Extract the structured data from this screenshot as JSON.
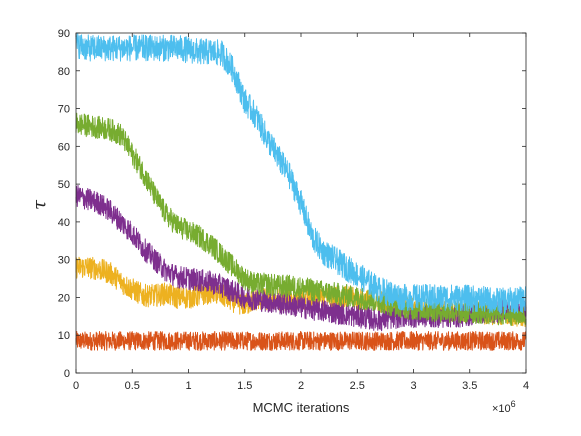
{
  "chart_data": {
    "type": "line",
    "title": "",
    "xlabel": "MCMC iterations",
    "ylabel": "τ",
    "x_exponent_label": "×10",
    "x_exponent_power": "6",
    "xlim": [
      0,
      4
    ],
    "ylim": [
      0,
      90
    ],
    "xticks": [
      0,
      0.5,
      1,
      1.5,
      2,
      2.5,
      3,
      3.5,
      4
    ],
    "xtick_labels": [
      "0",
      "0.5",
      "1",
      "1.5",
      "2",
      "2.5",
      "3",
      "3.5",
      "4"
    ],
    "yticks": [
      0,
      10,
      20,
      30,
      40,
      50,
      60,
      70,
      80,
      90
    ],
    "ytick_labels": [
      "0",
      "10",
      "20",
      "30",
      "40",
      "50",
      "60",
      "70",
      "80",
      "90"
    ],
    "grid": false,
    "series": [
      {
        "color": "#D95319",
        "band_width": 2.5,
        "x": [
          0,
          0.5,
          1,
          1.5,
          2,
          2.5,
          3,
          3.5,
          4
        ],
        "y": [
          8.5,
          8.5,
          8.5,
          8.5,
          8.5,
          8.5,
          8.5,
          8.5,
          8.5
        ]
      },
      {
        "color": "#EDB120",
        "band_width": 3,
        "x": [
          0,
          0.1,
          0.2,
          0.3,
          0.45,
          0.6,
          0.7,
          0.8,
          0.9,
          1.0,
          1.1,
          1.2,
          1.3,
          1.4,
          1.5,
          1.6,
          1.7,
          1.8,
          1.9,
          2.0,
          2.1,
          2.2,
          2.3,
          2.4,
          2.5,
          2.6,
          2.7,
          2.8,
          2.9,
          3.0,
          3.2,
          3.4,
          3.6,
          3.8,
          4.0
        ],
        "y": [
          28,
          28,
          27.5,
          26.5,
          23,
          20.5,
          20.5,
          21,
          20,
          20,
          20.5,
          21.5,
          20.5,
          19,
          18,
          19.5,
          19.5,
          19.5,
          19.5,
          19.5,
          20,
          20,
          20,
          20,
          19.5,
          19,
          19,
          18,
          17.5,
          17,
          16.5,
          16.5,
          16,
          15.5,
          15
        ]
      },
      {
        "color": "#7E2F8E",
        "band_width": 3,
        "x": [
          0,
          0.1,
          0.2,
          0.3,
          0.4,
          0.5,
          0.6,
          0.7,
          0.8,
          0.9,
          1.0,
          1.1,
          1.2,
          1.3,
          1.4,
          1.5,
          1.6,
          1.7,
          1.8,
          1.9,
          2.0,
          2.1,
          2.2,
          2.3,
          2.4,
          2.5,
          2.6,
          2.7,
          2.8,
          2.9,
          3.0,
          3.2,
          3.4,
          3.6,
          3.8,
          4.0
        ],
        "y": [
          47,
          46,
          45,
          43,
          40,
          37,
          33,
          30,
          27,
          25.5,
          25,
          24.5,
          24,
          23,
          21.5,
          20,
          19.5,
          19,
          18.5,
          18,
          17.5,
          17,
          16.5,
          16,
          15.5,
          15,
          14.5,
          14,
          14.5,
          15,
          15,
          15,
          15,
          16,
          16.5,
          16.5
        ]
      },
      {
        "color": "#77AC30",
        "band_width": 3,
        "x": [
          0,
          0.1,
          0.2,
          0.3,
          0.4,
          0.5,
          0.6,
          0.7,
          0.8,
          0.9,
          1.0,
          1.1,
          1.2,
          1.3,
          1.4,
          1.5,
          1.6,
          1.7,
          1.8,
          1.9,
          2.0,
          2.1,
          2.2,
          2.3,
          2.4,
          2.5,
          2.6,
          2.7,
          2.8,
          2.9,
          3.0,
          3.2,
          3.4,
          3.6,
          3.8,
          4.0
        ],
        "y": [
          66,
          65.5,
          65,
          64.5,
          63,
          58,
          53,
          47,
          42,
          39,
          37.5,
          36,
          34,
          31,
          28,
          25,
          23.5,
          23.5,
          23,
          23,
          22.5,
          22,
          21.5,
          21,
          20.5,
          20,
          19.5,
          19,
          18,
          17.5,
          17,
          16.5,
          16,
          16,
          15.5,
          15.5
        ]
      },
      {
        "color": "#4DBEEE",
        "band_width": 3.5,
        "x": [
          0,
          0.1,
          0.2,
          0.3,
          0.4,
          0.5,
          0.6,
          0.7,
          0.8,
          0.9,
          1.0,
          1.1,
          1.2,
          1.3,
          1.4,
          1.5,
          1.6,
          1.7,
          1.8,
          1.9,
          2.0,
          2.1,
          2.2,
          2.3,
          2.4,
          2.5,
          2.6,
          2.7,
          2.8,
          2.9,
          3.0,
          3.2,
          3.4,
          3.6,
          3.8,
          4.0
        ],
        "y": [
          87,
          86,
          86,
          86,
          86,
          86,
          86,
          86,
          86,
          86,
          85.5,
          85,
          85,
          84.5,
          80,
          72,
          68,
          62,
          57,
          52,
          45,
          36,
          32,
          30,
          28,
          26,
          24,
          22,
          21,
          20,
          20,
          20,
          20,
          19.5,
          19,
          19.5
        ]
      }
    ]
  }
}
